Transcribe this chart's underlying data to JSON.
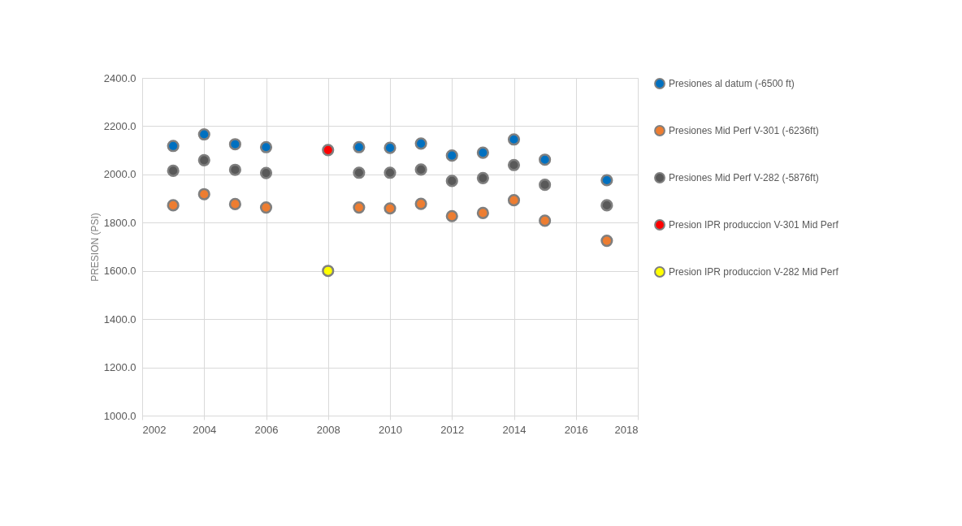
{
  "chart_data": {
    "type": "scatter",
    "ylabel": "PRESION (PSI)",
    "xlim": [
      2002,
      2018
    ],
    "xticks": [
      2002,
      2004,
      2006,
      2008,
      2010,
      2012,
      2014,
      2016,
      2018
    ],
    "ylim": [
      1000,
      2400
    ],
    "yticks": [
      {
        "value": 1000,
        "label": "1000.0"
      },
      {
        "value": 1200,
        "label": "1200.0"
      },
      {
        "value": 1400,
        "label": "1400.0"
      },
      {
        "value": 1600,
        "label": "1600.0"
      },
      {
        "value": 1800,
        "label": "1800.0"
      },
      {
        "value": 2000,
        "label": "2000.0"
      },
      {
        "value": 2200,
        "label": "2200.0"
      },
      {
        "value": 2400,
        "label": "2400.0"
      }
    ],
    "grid": true,
    "legend": "right",
    "marker": "circle",
    "series": [
      {
        "name": "Presiones al datum (-6500 ft)",
        "color": "#0070c0",
        "x": [
          2003,
          2004,
          2005,
          2006,
          2009,
          2010,
          2011,
          2012,
          2013,
          2014,
          2015,
          2017
        ],
        "values": [
          2118,
          2166,
          2125,
          2113,
          2113,
          2110,
          2128,
          2078,
          2090,
          2145,
          2061,
          1976
        ]
      },
      {
        "name": "Presiones Mid Perf V-301 (-6236ft)",
        "color": "#ed7d31",
        "x": [
          2003,
          2004,
          2005,
          2006,
          2009,
          2010,
          2011,
          2012,
          2013,
          2014,
          2015,
          2017
        ],
        "values": [
          1872,
          1918,
          1877,
          1863,
          1863,
          1859,
          1878,
          1827,
          1840,
          1893,
          1808,
          1725
        ]
      },
      {
        "name": "Presiones Mid Perf V-282 (-5876ft)",
        "color": "#595959",
        "x": [
          2003,
          2004,
          2005,
          2006,
          2009,
          2010,
          2011,
          2012,
          2013,
          2014,
          2015,
          2017
        ],
        "values": [
          2015,
          2059,
          2019,
          2006,
          2007,
          2007,
          2020,
          1973,
          1985,
          2039,
          1957,
          1872
        ]
      },
      {
        "name": "Presion IPR produccion V-301 Mid Perf",
        "color": "#ff0000",
        "x": [
          2008
        ],
        "values": [
          2101
        ]
      },
      {
        "name": "Presion IPR produccion V-282 Mid Perf",
        "color": "#ffff00",
        "x": [
          2008
        ],
        "values": [
          1600
        ]
      }
    ]
  }
}
